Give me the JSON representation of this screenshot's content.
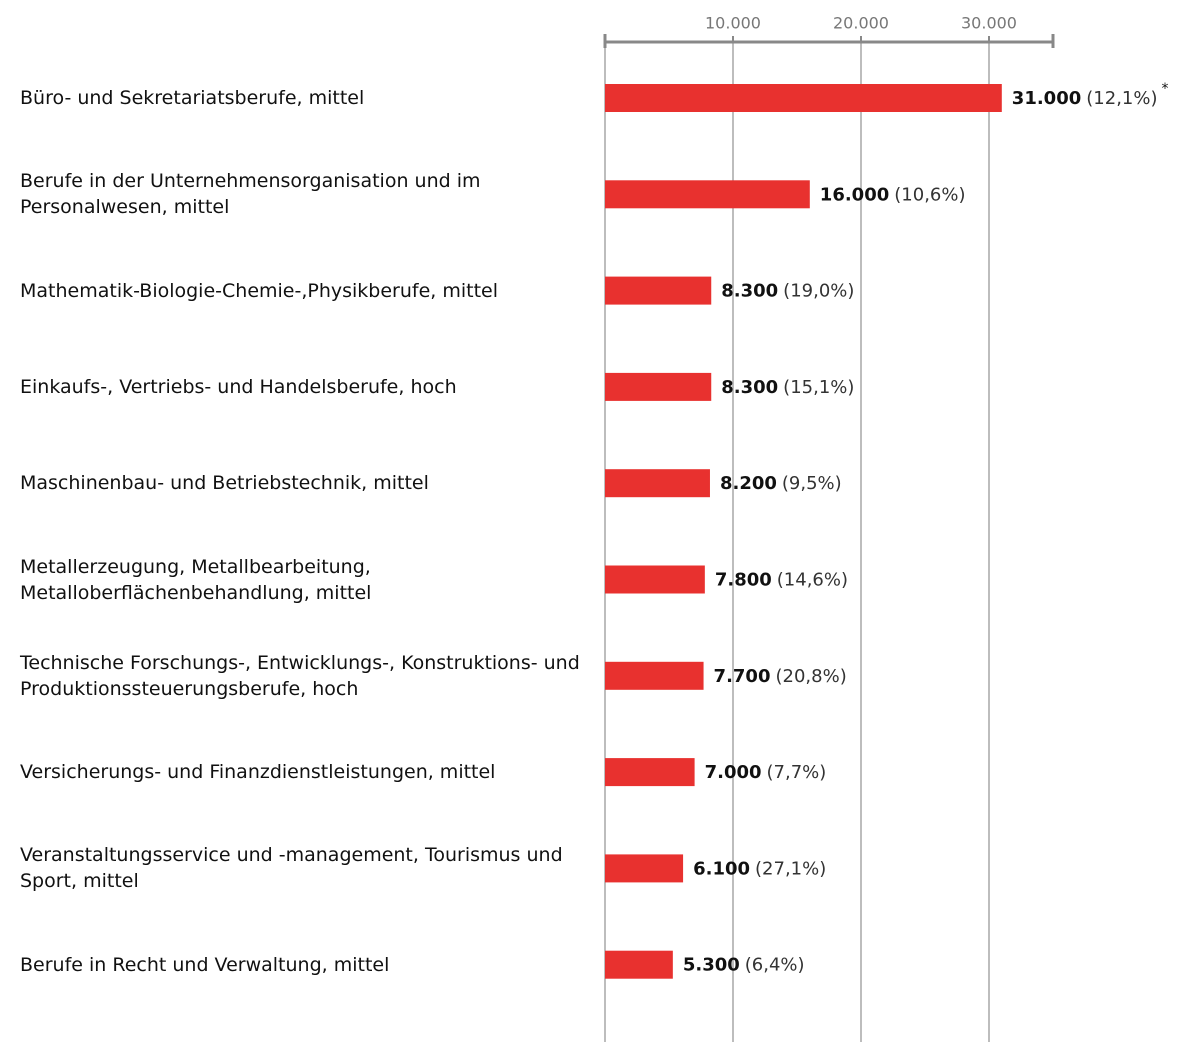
{
  "chart_data": {
    "type": "barh",
    "categories": [
      "Büro- und Sekretariatsberufe, mittel",
      "Berufe in der Unternehmensorganisation und im Personalwesen, mittel",
      "Mathematik-Biologie-Chemie-,Physikberufe, mittel",
      "Einkaufs-, Vertriebs- und Handelsberufe, hoch",
      "Maschinenbau- und Betriebstechnik, mittel",
      "Metallerzeugung, Metallbearbeitung, Metalloberflächenbehandlung, mittel",
      "Technische Forschungs-, Entwicklungs-, Konstruktions- und Produktionssteuerungsberufe, hoch",
      "Versicherungs- und Finanzdienstleistungen, mittel",
      "Veranstaltungsservice und -management, Tourismus und Sport, mittel",
      "Berufe in Recht und Verwaltung, mittel"
    ],
    "values": [
      31000,
      16000,
      8300,
      8300,
      8200,
      7800,
      7700,
      7000,
      6100,
      5300
    ],
    "value_labels": [
      "31.000",
      "16.000",
      "8.300",
      "8.300",
      "8.200",
      "7.800",
      "7.700",
      "7.000",
      "6.100",
      "5.300"
    ],
    "share_labels": [
      "(12,1%)",
      "(10,6%)",
      "(19,0%)",
      "(15,1%)",
      "(9,5%)",
      "(14,6%)",
      "(20,8%)",
      "(7,7%)",
      "(27,1%)",
      "(6,4%)"
    ],
    "annotation": "*",
    "color": "#e8312f",
    "xlim": [
      0,
      35000
    ],
    "xticks": [
      {
        "value": 10000,
        "label": "10.000"
      },
      {
        "value": 20000,
        "label": "20.000"
      },
      {
        "value": 30000,
        "label": "30.000"
      }
    ],
    "grid": true
  }
}
